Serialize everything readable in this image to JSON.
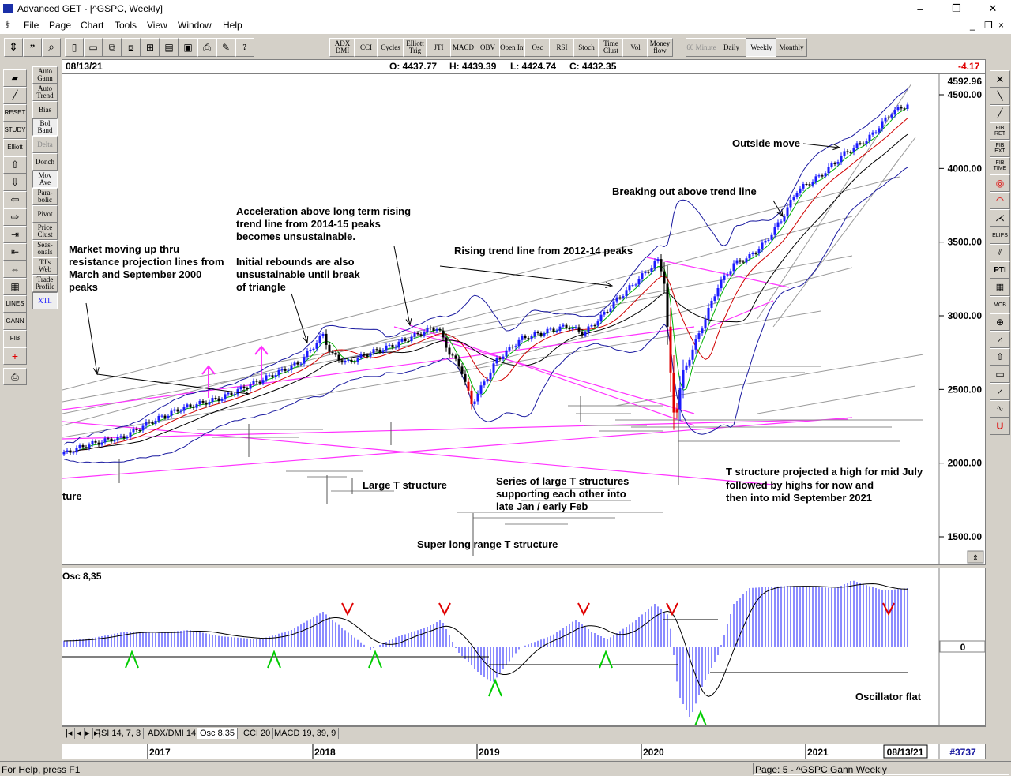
{
  "window": {
    "title": "Advanced GET - [^GSPC, Weekly]",
    "controls": {
      "minimize": "–",
      "restore": "❐",
      "close": "✕"
    },
    "child_controls": {
      "minimize": "_",
      "restore": "❐",
      "close": "×"
    }
  },
  "menu": [
    "File",
    "Page",
    "Chart",
    "Tools",
    "View",
    "Window",
    "Help"
  ],
  "toolbar": {
    "buttons": [
      "ADX DMI",
      "CCI",
      "Cycles",
      "Elliott Trig",
      "JTI",
      "MACD",
      "OBV",
      "Open Int",
      "Osc",
      "RSI",
      "Stoch",
      "Time Clust",
      "Vol",
      "Money flow"
    ],
    "timeframes": [
      "60 Minute",
      "Daily",
      "Weekly",
      "Monthly"
    ],
    "selected_timeframe": "Weekly"
  },
  "left_tools": {
    "col1": [
      "RESET",
      "STUDY",
      "Elliott",
      "LINES",
      "GANN",
      "FIB"
    ],
    "col2": [
      "Auto Gann",
      "Auto Trend",
      "Bias",
      "Bol Band",
      "Delta",
      "Donch",
      "Mov Ave",
      "Para-bolic",
      "Pivot",
      "Price Clust",
      "Seas-onals",
      "TJ's Web",
      "Trade Profile",
      "XTL"
    ]
  },
  "right_tools": [
    "FIB RET",
    "FIB EXT",
    "FIB TIME",
    "ELIPS",
    "PTI",
    "MOB"
  ],
  "info": {
    "date": "08/13/21",
    "open": "O: 4437.77",
    "high": "H: 4439.39",
    "low": "L: 4424.74",
    "close": "C: 4432.35",
    "change": "-4.17"
  },
  "price_axis": {
    "current": "4592.96",
    "labels": [
      "4500.00",
      "4000.00",
      "3500.00",
      "3000.00",
      "2500.00",
      "2000.00",
      "1500.00"
    ]
  },
  "annotations": {
    "outside_move": "Outside move",
    "breakout": "Breaking out above trend line",
    "accel": [
      "Acceleration above long term rising",
      "trend line from 2014-15 peaks",
      "becomes unsustainable."
    ],
    "rising_trend": "Rising trend line from 2012-14 peaks",
    "market_moving": [
      "Market moving up thru",
      "resistance projection lines from",
      "March and September 2000",
      "peaks"
    ],
    "initial": [
      "Initial rebounds are also",
      "unsustainable until break",
      "of triangle"
    ],
    "large_t": "Large T structure",
    "ture": "ture",
    "series": [
      "Series of large T structures",
      "supporting each other into",
      "late Jan / early Feb"
    ],
    "super": "Super long range T structure",
    "t_projected": [
      "T structure projected a high for mid July",
      "followed by highs for now and",
      "then into mid September 2021"
    ],
    "osc_flat": "Oscillator flat"
  },
  "oscillator": {
    "label": "Osc 8,35",
    "zero_label": "0"
  },
  "tabs": [
    "RSI 14, 7, 3",
    "ADX/DMI 14",
    "Osc 8,35",
    "CCI 20",
    "MACD 19, 39, 9"
  ],
  "selected_tab": "Osc 8,35",
  "date_axis": {
    "years": [
      "2017",
      "2018",
      "2019",
      "2020",
      "2021"
    ],
    "current_date": "08/13/21",
    "bar_count": "#3737"
  },
  "status": {
    "help": "For Help, press F1",
    "page": "Page: 5 - ^GSPC Gann Weekly"
  },
  "colors": {
    "up_bar": "#1a1aff",
    "down_bar": "#000000",
    "red_bar": "#e00000",
    "magenta": "#ff33ff",
    "osc_blue": "#1a1aff",
    "arrow_red": "#e00000",
    "arrow_green": "#00cc00"
  },
  "chart_data": {
    "type": "candlestick",
    "instrument": "^GSPC",
    "ylim": [
      1300,
      4700
    ],
    "series": [
      {
        "name": "^GSPC",
        "x": [
          "2017",
          "2018",
          "2019",
          "2020",
          "2021",
          "08/13/21"
        ],
        "values": [
          2270,
          2760,
          2530,
          3230,
          3750,
          4432.35
        ]
      }
    ]
  }
}
